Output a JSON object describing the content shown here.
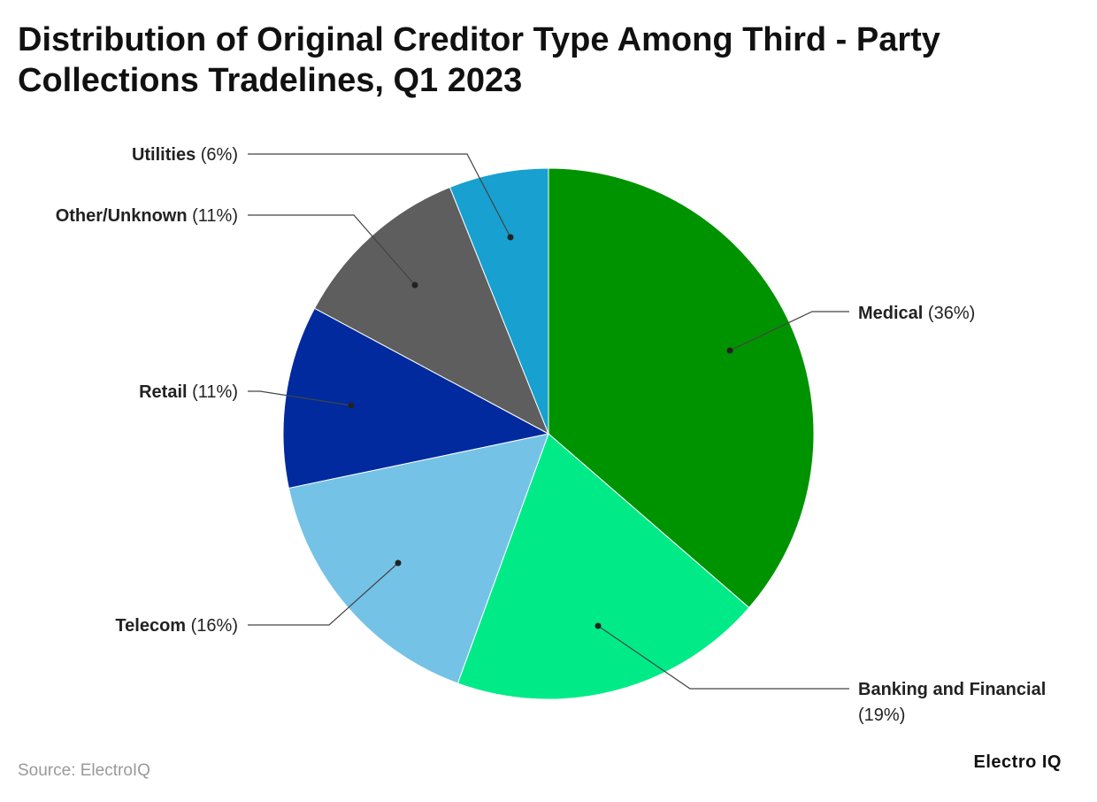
{
  "title": "Distribution of Original Creditor Type Among Third - Party Collections Tradelines, Q1 2023",
  "source": "Source: ElectroIQ",
  "brand": "Electro IQ",
  "chart_data": {
    "type": "pie",
    "unit": "%",
    "slices": [
      {
        "label": "Medical",
        "value": 36,
        "display": "(36%)",
        "color": "#009300"
      },
      {
        "label": "Banking and Financial",
        "value": 19,
        "display": "(19%)",
        "color": "#00eb87"
      },
      {
        "label": "Telecom",
        "value": 16,
        "display": "(16%)",
        "color": "#75c2e7"
      },
      {
        "label": "Retail",
        "value": 11,
        "display": "(11%)",
        "color": "#002a9e"
      },
      {
        "label": "Other/Unknown",
        "value": 11,
        "display": "(11%)",
        "color": "#5e5e5e"
      },
      {
        "label": "Utilities",
        "value": 6,
        "display": "(6%)",
        "color": "#17a0d0"
      }
    ]
  }
}
